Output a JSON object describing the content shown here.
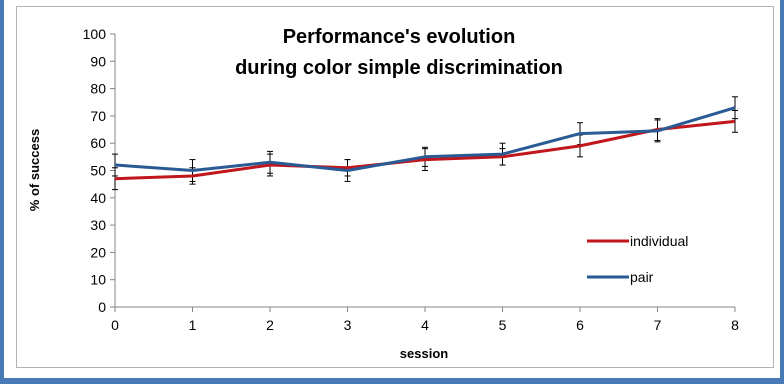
{
  "chart_data": {
    "type": "line",
    "title": [
      "Performance's evolution",
      "during color simple discrimination"
    ],
    "xlabel": "session",
    "ylabel": "% of success",
    "x": [
      0,
      1,
      2,
      3,
      4,
      5,
      6,
      7,
      8
    ],
    "xlim": [
      0,
      8
    ],
    "ylim": [
      0,
      100
    ],
    "yticks": [
      0,
      10,
      20,
      30,
      40,
      50,
      60,
      70,
      80,
      90,
      100
    ],
    "grid": false,
    "legend_position": "right",
    "series": [
      {
        "name": "individual",
        "color": "#c0161c",
        "values": [
          47,
          48,
          52,
          51,
          54,
          55,
          59,
          65,
          68
        ],
        "error": [
          4,
          3,
          4,
          3,
          4,
          3,
          4,
          4,
          4
        ]
      },
      {
        "name": "pair",
        "color": "#2a5a94",
        "values": [
          52,
          50,
          53,
          50,
          55,
          56,
          63.5,
          64.5,
          73
        ],
        "error": [
          4,
          4,
          4,
          4,
          3.5,
          4,
          4,
          4,
          4
        ]
      }
    ]
  }
}
